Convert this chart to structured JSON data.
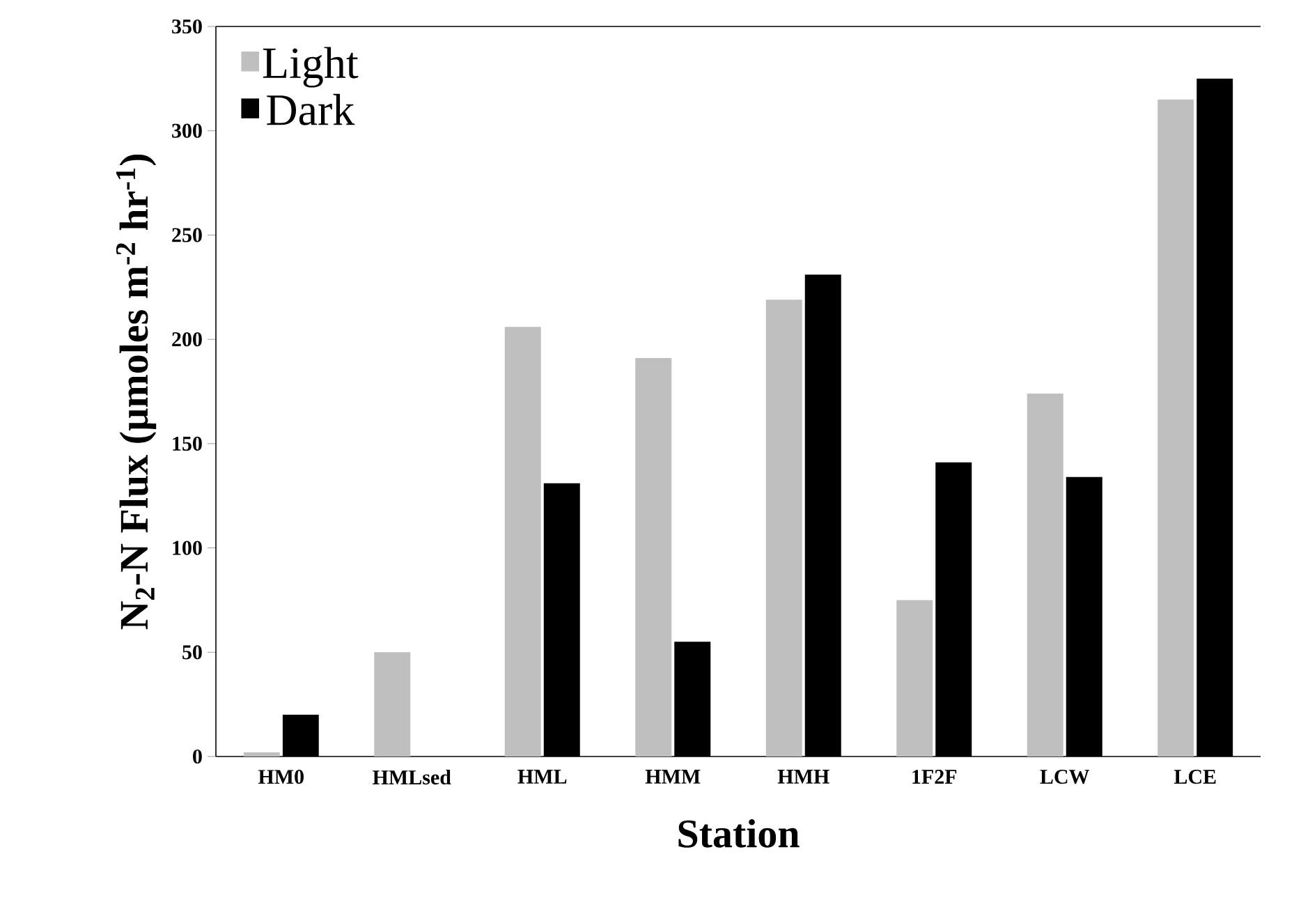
{
  "chart_data": {
    "type": "bar",
    "xlabel": "Station",
    "ylabel": "N$_{2}$-N Flux (µmoles m$^{-2}$ hr$^{-1}$)",
    "categories": [
      "HM0",
      "HMLsed",
      "HML",
      "HMM",
      "HMH",
      "1F2F",
      "LCW",
      "LCE"
    ],
    "series": [
      {
        "name": "Light",
        "color": "#bfbfbf",
        "values": [
          2,
          50,
          206,
          191,
          219,
          75,
          174,
          315
        ]
      },
      {
        "name": "Dark",
        "color": "#000000",
        "values": [
          20,
          null,
          131,
          55,
          231,
          141,
          134,
          325
        ]
      }
    ],
    "ylim": [
      0,
      350
    ],
    "yticks": [
      0,
      50,
      100,
      150,
      200,
      250,
      300,
      350
    ],
    "grid": false,
    "legend": "top left"
  }
}
